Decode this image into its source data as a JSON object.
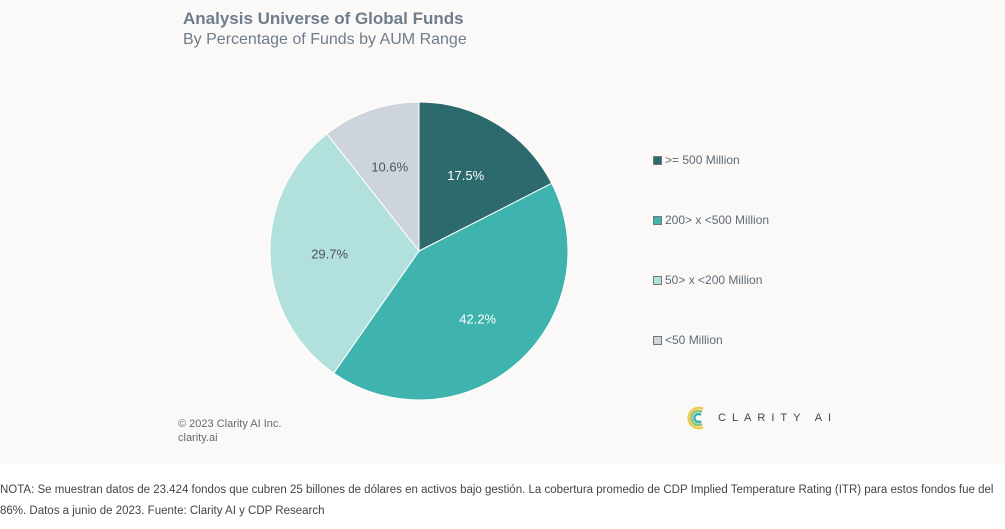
{
  "chart_data": {
    "type": "pie",
    "title": "Analysis Universe of Global Funds",
    "subtitle": "By Percentage of Funds by AUM Range",
    "slices": [
      {
        "label": ">= 500 Million",
        "value": 17.5,
        "display": "17.5%",
        "color": "#2c6a6e",
        "text_color": "#ffffff"
      },
      {
        "label": "200> x <500 Million",
        "value": 42.2,
        "display": "42.2%",
        "color": "#3fb3ad",
        "text_color": "#ffffff"
      },
      {
        "label": "50> x <200 Million",
        "value": 29.7,
        "display": "29.7%",
        "color": "#b2e0dd",
        "text_color": "#4a5560"
      },
      {
        "label": "<50 Million",
        "value": 10.6,
        "display": "10.6%",
        "color": "#ced4dc",
        "text_color": "#4a5560"
      }
    ],
    "legend_position": "right"
  },
  "footer": {
    "copyright": "© 2023 Clarity AI Inc.",
    "website": "clarity.ai",
    "brand": "CLARITY AI"
  },
  "note": "NOTA: Se muestran datos de 23.424 fondos que cubren 25 billones de dólares en activos bajo gestión. La cobertura promedio de CDP Implied Temperature Rating (ITR) para estos fondos fue del 86%. Datos a junio de 2023. Fuente: Clarity AI y CDP Research",
  "colors": {
    "title": "#6f7c8b",
    "panel_bg": "#faf9f8"
  }
}
